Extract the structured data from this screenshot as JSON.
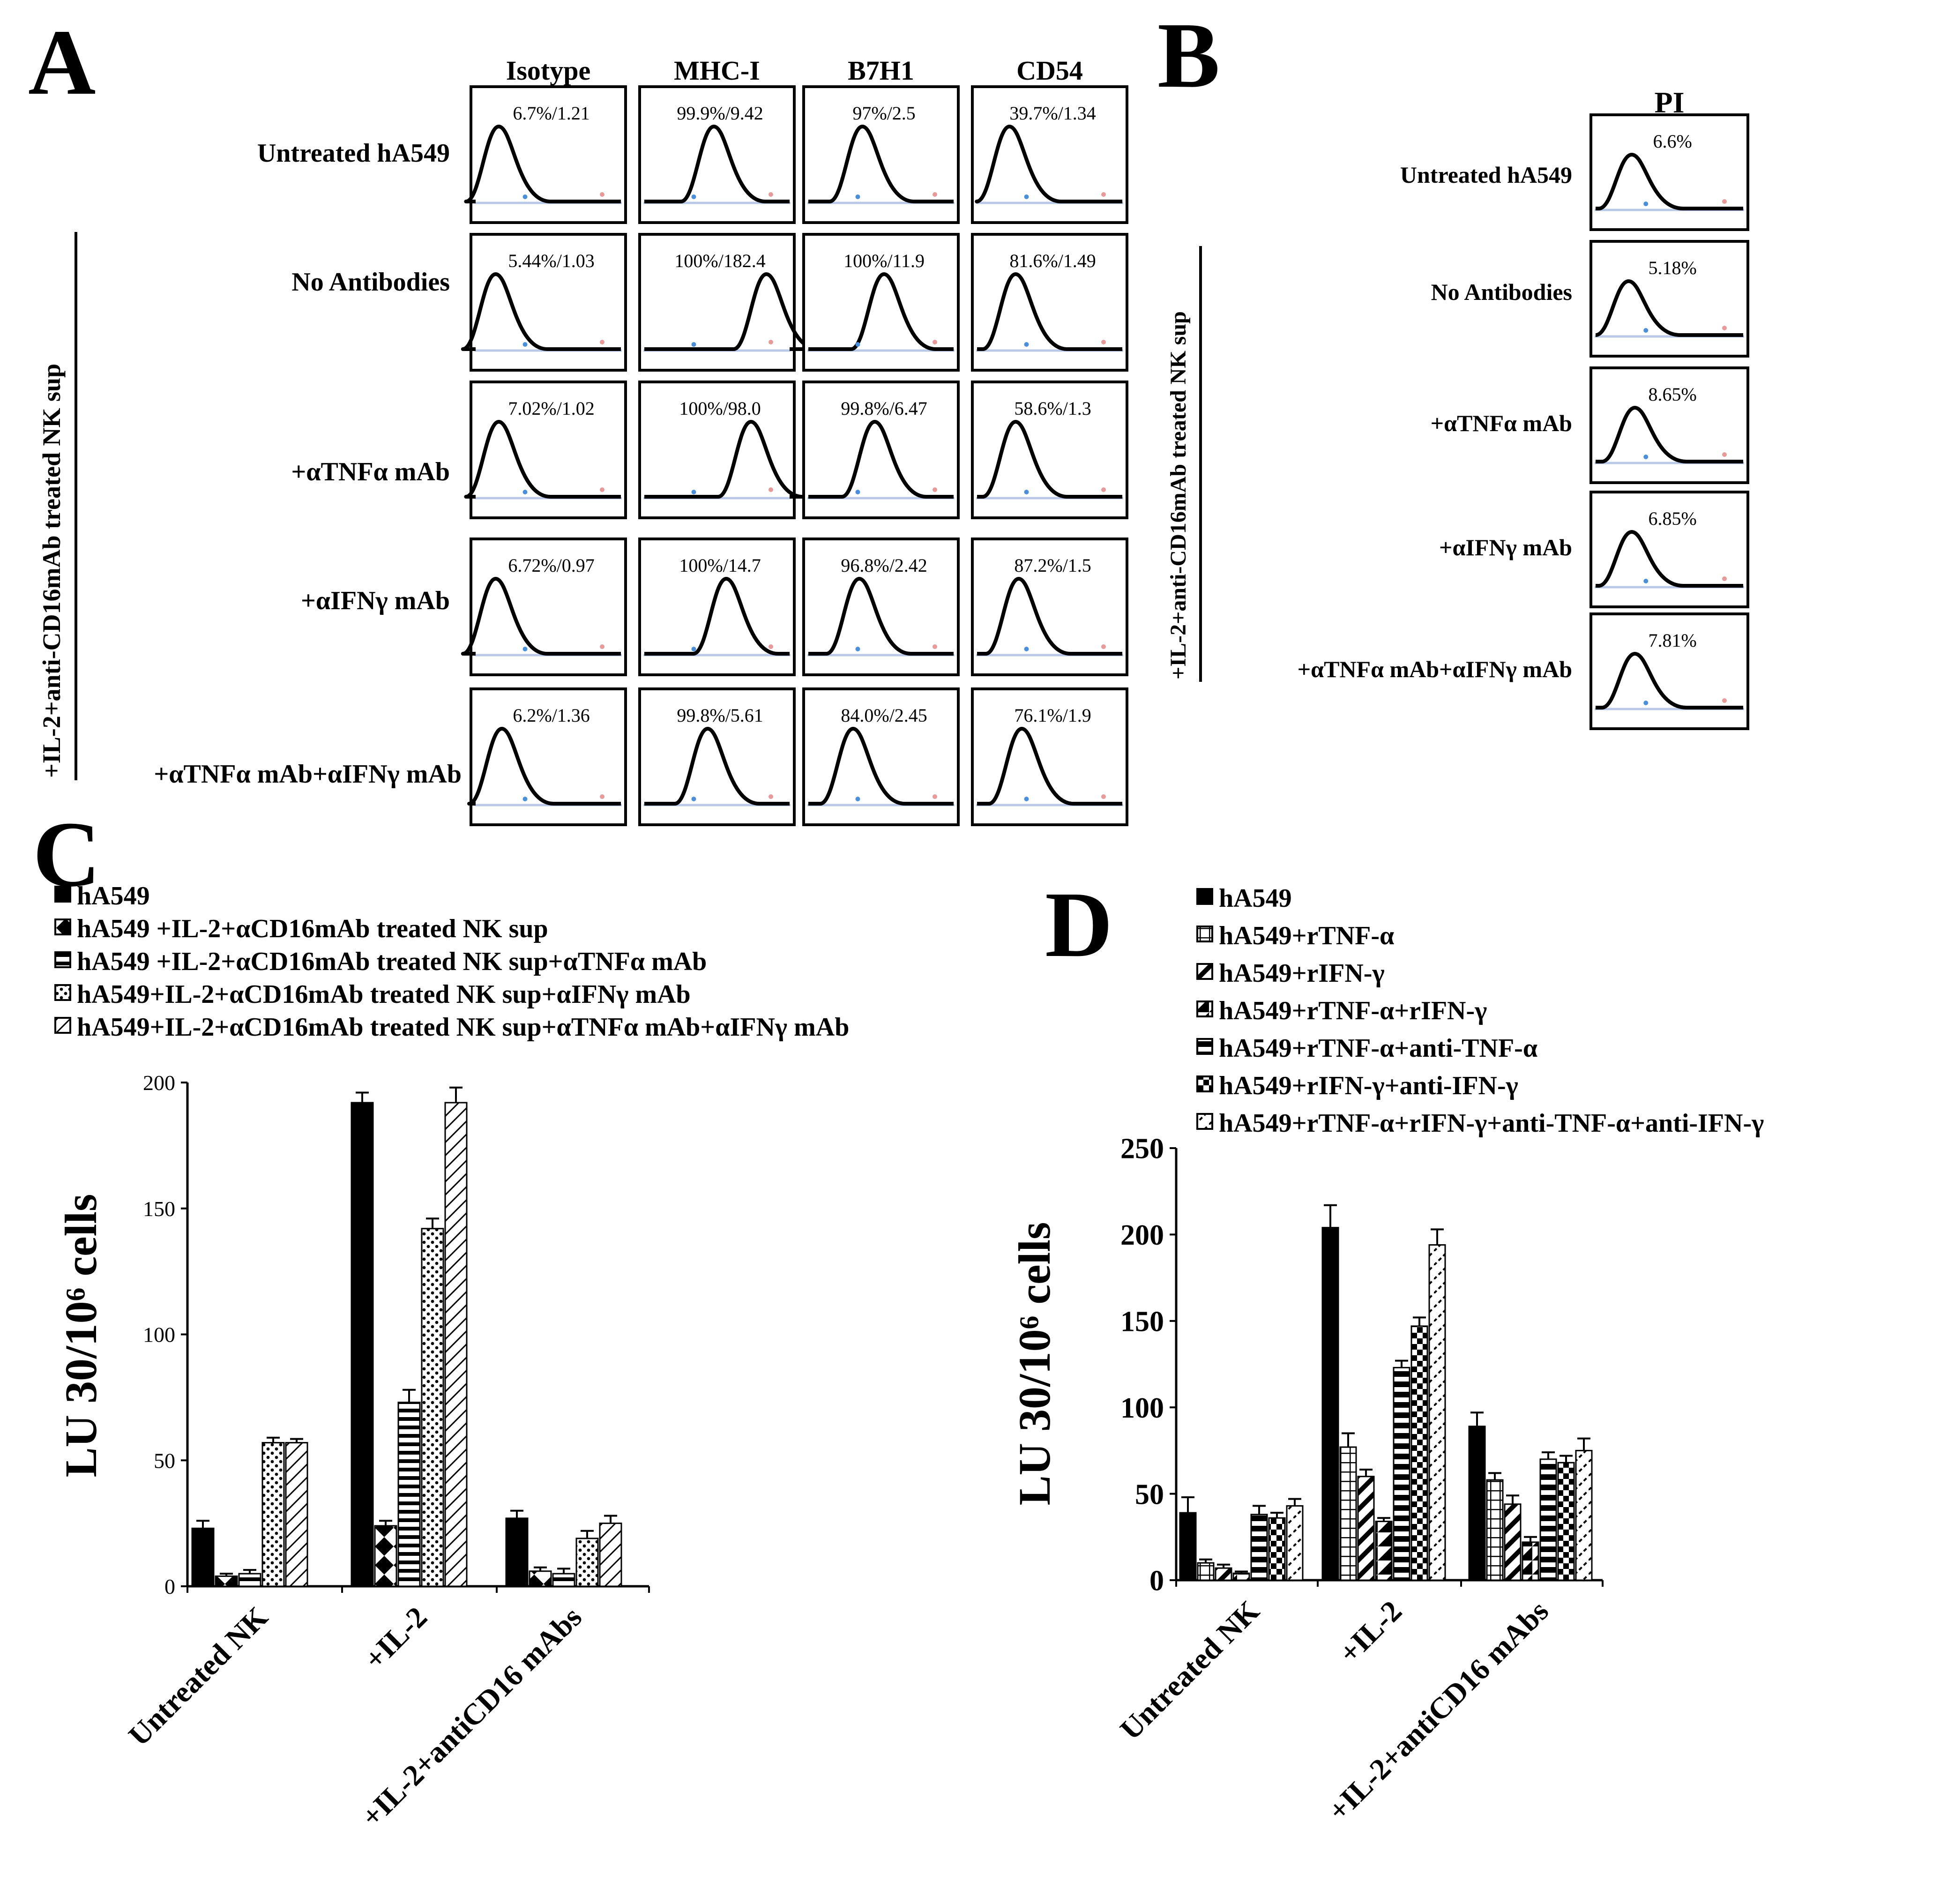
{
  "panelA": {
    "letter": "A",
    "columns": [
      "Isotype",
      "MHC-I",
      "B7H1",
      "CD54"
    ],
    "rows": [
      {
        "label": "Untreated hA549",
        "cells": [
          "6.7%/1.21",
          "99.9%/9.42",
          "97%/2.5",
          "39.7%/1.34"
        ],
        "peaks": [
          0.18,
          0.48,
          0.38,
          0.24
        ]
      },
      {
        "label": "No Antibodies",
        "cells": [
          "5.44%/1.03",
          "100%/182.4",
          "100%/11.9",
          "81.6%/1.49"
        ],
        "peaks": [
          0.16,
          0.82,
          0.52,
          0.28
        ]
      },
      {
        "label": "+αTNFα mAb",
        "cells": [
          "7.02%/1.02",
          "100%/98.0",
          "99.8%/6.47",
          "58.6%/1.3"
        ],
        "peaks": [
          0.18,
          0.72,
          0.46,
          0.28
        ]
      },
      {
        "label": "+αIFNγ mAb",
        "cells": [
          "6.72%/0.97",
          "100%/14.7",
          "96.8%/2.42",
          "87.2%/1.5"
        ],
        "peaks": [
          0.16,
          0.56,
          0.36,
          0.3
        ]
      },
      {
        "label": "+αTNFα mAb+αIFNγ mAb",
        "cells": [
          "6.2%/1.36",
          "99.8%/5.61",
          "84.0%/2.45",
          "76.1%/1.9"
        ],
        "peaks": [
          0.2,
          0.44,
          0.32,
          0.32
        ]
      }
    ],
    "bracket_label": "+IL-2+anti-CD16mAb treated NK sup"
  },
  "panelB": {
    "letter": "B",
    "column": "PI",
    "rows": [
      {
        "label": "Untreated hA549",
        "value": "6.6%",
        "peak": 0.26
      },
      {
        "label": "No Antibodies",
        "value": "5.18%",
        "peak": 0.24
      },
      {
        "label": "+αTNFα mAb",
        "value": "8.65%",
        "peak": 0.28
      },
      {
        "label": "+αIFNγ mAb",
        "value": "6.85%",
        "peak": 0.26
      },
      {
        "label": "+αTNFα mAb+αIFNγ mAb",
        "value": "7.81%",
        "peak": 0.28
      }
    ],
    "bracket_label": "+IL-2+anti-CD16mAb treated NK sup"
  },
  "chart_data": [
    {
      "panel": "C",
      "type": "bar",
      "ylabel": "LU 30/10⁶ cells",
      "ylim": [
        0,
        200
      ],
      "yticks": [
        0,
        50,
        100,
        150,
        200
      ],
      "categories": [
        "Untreated NK",
        "+IL-2",
        "+IL-2+antiCD16 mAbs"
      ],
      "series": [
        {
          "name": "hA549",
          "values": [
            23,
            192,
            27
          ],
          "errors": [
            3,
            4,
            3
          ]
        },
        {
          "name": "hA549 +IL-2+αCD16mAb treated NK sup",
          "values": [
            4,
            24,
            6
          ],
          "errors": [
            1,
            2,
            1.5
          ]
        },
        {
          "name": "hA549 +IL-2+αCD16mAb treated NK sup+αTNFα mAb",
          "values": [
            5,
            73,
            5
          ],
          "errors": [
            1.5,
            5,
            2
          ]
        },
        {
          "name": "hA549+IL-2+αCD16mAb treated NK sup+αIFNγ mAb",
          "values": [
            57,
            142,
            19
          ],
          "errors": [
            2,
            4,
            3
          ]
        },
        {
          "name": "hA549+IL-2+αCD16mAb treated NK sup+αTNFα mAb+αIFNγ mAb",
          "values": [
            57,
            192,
            25
          ],
          "errors": [
            1.5,
            6,
            3
          ]
        }
      ]
    },
    {
      "panel": "D",
      "type": "bar",
      "ylabel": "LU 30/10⁶ cells",
      "ylim": [
        0,
        250
      ],
      "yticks": [
        0,
        50,
        100,
        150,
        200,
        250
      ],
      "categories": [
        "Untreated NK",
        "+IL-2",
        "+IL-2+antiCD16 mAbs"
      ],
      "series": [
        {
          "name": "hA549",
          "values": [
            39,
            204,
            89
          ],
          "errors": [
            9,
            13,
            8
          ]
        },
        {
          "name": "hA549+rTNF-α",
          "values": [
            10,
            77,
            58
          ],
          "errors": [
            2,
            8,
            4
          ]
        },
        {
          "name": "hA549+rIFN-γ",
          "values": [
            7,
            60,
            44
          ],
          "errors": [
            2,
            4,
            5
          ]
        },
        {
          "name": "hA549+rTNF-α+rIFN-γ",
          "values": [
            4,
            34,
            22
          ],
          "errors": [
            1,
            2,
            3
          ]
        },
        {
          "name": "hA549+rTNF-α+anti-TNF-α",
          "values": [
            38,
            123,
            70
          ],
          "errors": [
            5,
            4,
            4
          ]
        },
        {
          "name": "hA549+rIFN-γ+anti-IFN-γ",
          "values": [
            36,
            147,
            68
          ],
          "errors": [
            3,
            5,
            4
          ]
        },
        {
          "name": "hA549+rTNF-α+rIFN-γ+anti-TNF-α+anti-IFN-γ",
          "values": [
            43,
            194,
            75
          ],
          "errors": [
            4,
            9,
            7
          ]
        }
      ]
    }
  ]
}
